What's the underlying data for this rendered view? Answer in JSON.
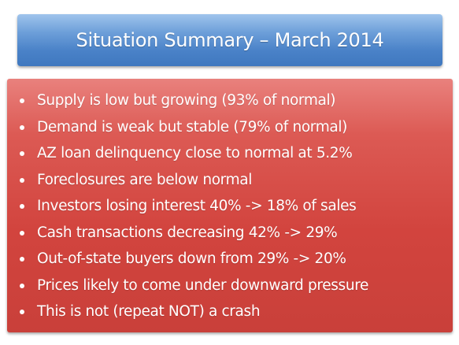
{
  "title": "Situation Summary – March 2014",
  "bullets": [
    "Supply is low but growing (93% of normal)",
    "Demand is weak but stable (79% of normal)",
    "AZ loan delinquency close to normal at 5.2%",
    "Foreclosures are below normal",
    "Investors losing interest 40% -> 18% of sales",
    "Cash transactions decreasing 42% -> 29%",
    "Out-of-state buyers down from 29% -> 20%",
    "Prices likely to come under downward pressure",
    "This is not (repeat NOT) a crash"
  ],
  "colors": {
    "title_box": "#4f86c9",
    "body_box": "#d3443e",
    "text": "#ffffff"
  }
}
